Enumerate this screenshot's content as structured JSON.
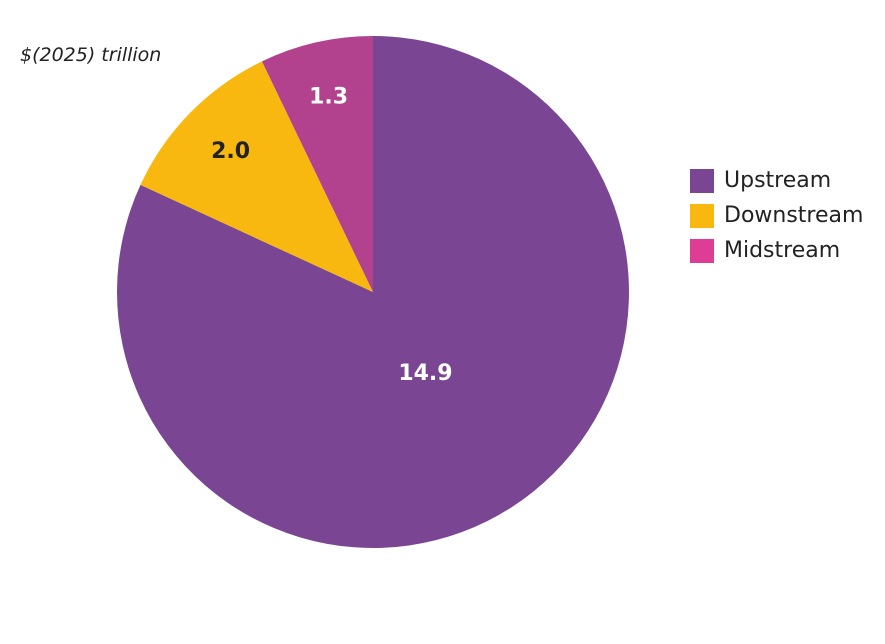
{
  "chart_data": {
    "type": "pie",
    "unit_label": "$(2025) trillion",
    "title": "",
    "slices": [
      {
        "name": "Upstream",
        "value": 14.9,
        "label": "14.9",
        "color": "#7a4592",
        "label_color": "#ffffff"
      },
      {
        "name": "Downstream",
        "value": 2.0,
        "label": "2.0",
        "color": "#f8b80f",
        "label_color": "#222222"
      },
      {
        "name": "Midstream",
        "value": 1.3,
        "label": "1.3",
        "color": "#b2428d",
        "label_color": "#ffffff"
      }
    ],
    "legend": {
      "placement": "right",
      "items": [
        {
          "name": "Upstream",
          "color": "#7a4592"
        },
        {
          "name": "Downstream",
          "color": "#f8b80f"
        },
        {
          "name": "Midstream",
          "color": "#de3d96"
        }
      ]
    }
  }
}
